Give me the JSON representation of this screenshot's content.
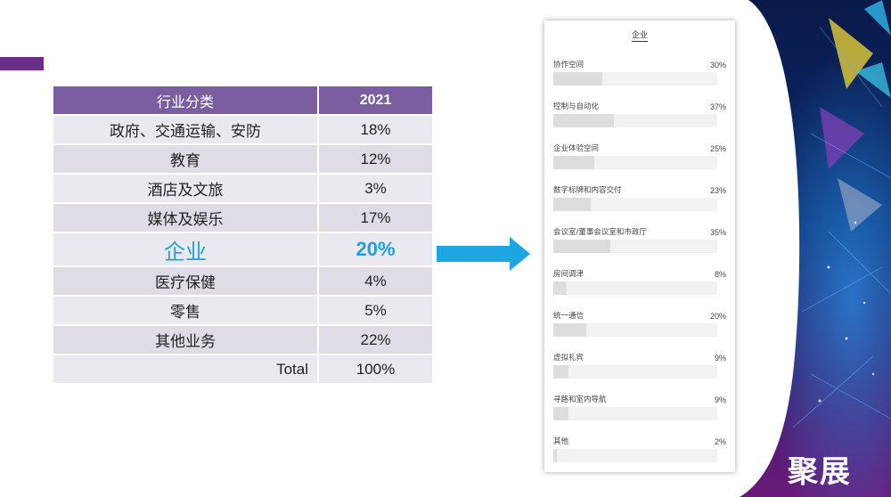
{
  "table": {
    "header": [
      "行业分类",
      "2021"
    ],
    "rows": [
      {
        "category": "政府、交通运输、安防",
        "value": "18%"
      },
      {
        "category": "教育",
        "value": "12%"
      },
      {
        "category": "酒店及文旅",
        "value": "3%"
      },
      {
        "category": "媒体及娱乐",
        "value": "17%"
      },
      {
        "category": "企业",
        "value": "20%"
      },
      {
        "category": "医疗保健",
        "value": "4%"
      },
      {
        "category": "零售",
        "value": "5%"
      },
      {
        "category": "其他业务",
        "value": "22%"
      },
      {
        "category": "Total",
        "value": "100%"
      }
    ]
  },
  "survey": {
    "title": "企业",
    "items": [
      {
        "label": "协作空间",
        "pct": "30%",
        "value": 30
      },
      {
        "label": "控制与自动化",
        "pct": "37%",
        "value": 37
      },
      {
        "label": "企业体验空间",
        "pct": "25%",
        "value": 25
      },
      {
        "label": "数字标牌和内容交付",
        "pct": "23%",
        "value": 23
      },
      {
        "label": "会议室/董事会议室和市政厅",
        "pct": "35%",
        "value": 35
      },
      {
        "label": "房间调津",
        "pct": "8%",
        "value": 8
      },
      {
        "label": "统一通信",
        "pct": "20%",
        "value": 20
      },
      {
        "label": "虚拟礼宾",
        "pct": "9%",
        "value": 9
      },
      {
        "label": "寻路和室内导航",
        "pct": "9%",
        "value": 9
      },
      {
        "label": "其他",
        "pct": "2%",
        "value": 2
      }
    ]
  },
  "logo": {
    "text": "聚展"
  },
  "colors": {
    "accent": "#6a2d8a",
    "header": "#7b5ea0",
    "highlight": "#21a0dc",
    "arrow": "#1ea6e2"
  }
}
